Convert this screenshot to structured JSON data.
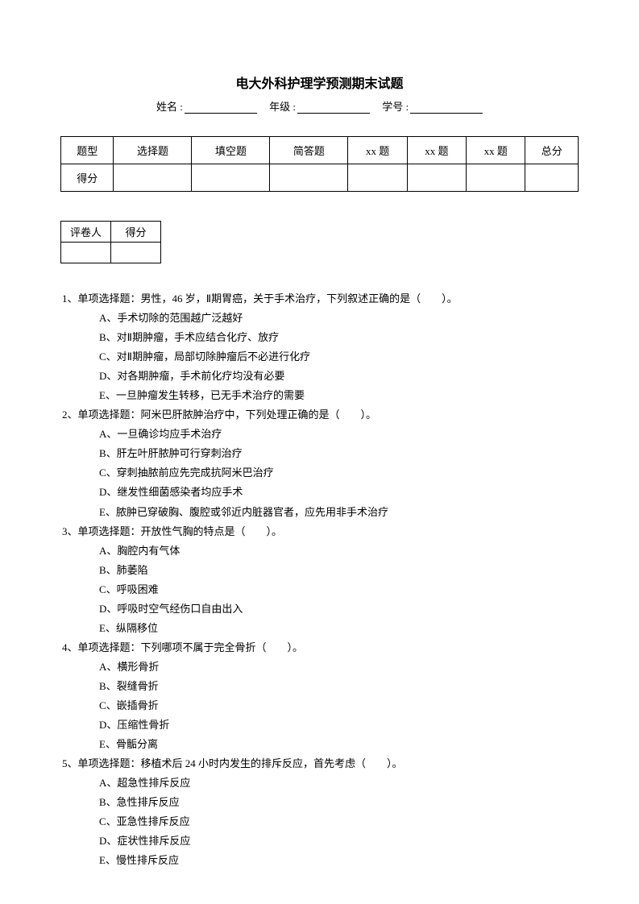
{
  "title": "电大外科护理学预测期末试题",
  "info": {
    "name_label": "姓名 :",
    "grade_label": "年级 :",
    "id_label": "学号 :"
  },
  "score_table": {
    "headers": [
      "题型",
      "选择题",
      "填空题",
      "简答题",
      "xx 题",
      "xx 题",
      "xx 题",
      "总分"
    ],
    "row2_first": "得分"
  },
  "small_table": {
    "c1": "评卷人",
    "c2": "得分"
  },
  "questions": [
    {
      "stem": "1、单项选择题：男性，46 岁，Ⅱ期胃癌，关于手术治疗，下列叙述正确的是（　　）。",
      "options": [
        "A、手术切除的范围越广泛越好",
        "B、对Ⅱ期肿瘤，手术应结合化疗、放疗",
        "C、对Ⅱ期肿瘤，局部切除肿瘤后不必进行化疗",
        "D、对各期肿瘤，手术前化疗均没有必要",
        "E、一旦肿瘤发生转移，已无手术治疗的需要"
      ]
    },
    {
      "stem": "2、单项选择题：阿米巴肝脓肿治疗中，下列处理正确的是（　　）。",
      "options": [
        "A、一旦确诊均应手术治疗",
        "B、肝左叶肝脓肿可行穿刺治疗",
        "C、穿刺抽脓前应先完成抗阿米巴治疗",
        "D、继发性细菌感染者均应手术",
        "E、脓肿已穿破胸、腹腔或邻近内脏器官者，应先用非手术治疗"
      ]
    },
    {
      "stem": "3、单项选择题：开放性气胸的特点是（　　）。",
      "options": [
        "A、胸腔内有气体",
        "B、肺萎陷",
        "C、呼吸困难",
        "D、呼吸时空气经伤口自由出入",
        "E、纵隔移位"
      ]
    },
    {
      "stem": "4、单项选择题：下列哪项不属于完全骨折（　　）。",
      "options": [
        "A、横形骨折",
        "B、裂缝骨折",
        "C、嵌插骨折",
        "D、压缩性骨折",
        "E、骨骺分离"
      ]
    },
    {
      "stem": "5、单项选择题：移植术后 24 小时内发生的排斥反应，首先考虑（　　）。",
      "options": [
        "A、超急性排斥反应",
        "B、急性排斥反应",
        "C、亚急性排斥反应",
        "D、症状性排斥反应",
        "E、慢性排斥反应"
      ]
    }
  ]
}
